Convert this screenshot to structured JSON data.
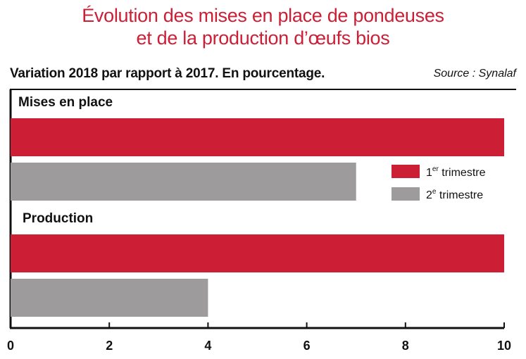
{
  "chart_data": {
    "type": "bar",
    "orientation": "horizontal",
    "title_line1": "Évolution des mises en place de pondeuses",
    "title_line2": "et de la production d’œufs bios",
    "subtitle": "Variation 2018 par rapport à 2017. En pourcentage.",
    "source": "Source : Synalaf",
    "categories": [
      "Mises en place",
      "Production"
    ],
    "series": [
      {
        "name_num": "1",
        "name_sup": "er",
        "name_rest": " trimestre",
        "color": "#cc1f36",
        "values": [
          10,
          10
        ]
      },
      {
        "name_num": "2",
        "name_sup": "e",
        "name_rest": " trimestre",
        "color": "#9d9b9b",
        "values": [
          7,
          4
        ]
      }
    ],
    "xlim": [
      0,
      10
    ],
    "xticks": [
      "0",
      "2",
      "4",
      "6",
      "8",
      "10"
    ],
    "legend_position": "right",
    "grid": false
  }
}
